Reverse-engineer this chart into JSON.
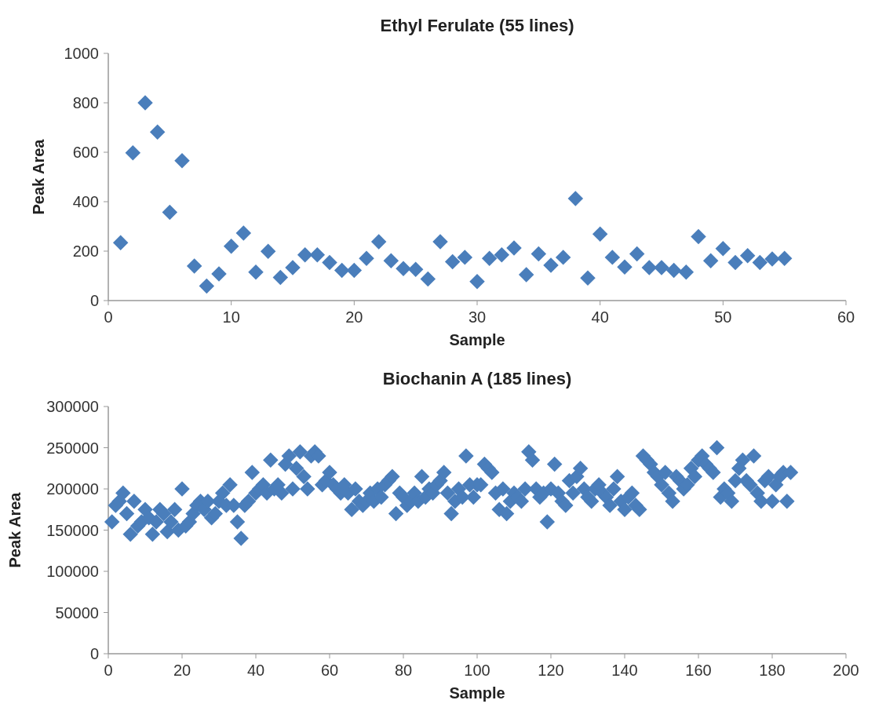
{
  "chart_data": [
    {
      "type": "scatter",
      "title": "Ethyl Ferulate (55 lines)",
      "xlabel": "Sample",
      "ylabel": "Peak Area",
      "marker": "diamond",
      "xlim": [
        0,
        60
      ],
      "xticks": [
        0,
        10,
        20,
        30,
        40,
        50,
        60
      ],
      "ylim": [
        0,
        1000
      ],
      "yticks": [
        0,
        200,
        400,
        600,
        800,
        1000
      ],
      "series": [
        {
          "color": "#4a7ebb",
          "x": [
            1,
            2,
            3,
            4,
            5,
            6,
            7,
            8,
            9,
            10,
            11,
            12,
            13,
            14,
            15,
            16,
            17,
            18,
            19,
            20,
            21,
            22,
            23,
            24,
            25,
            26,
            27,
            28,
            29,
            30,
            31,
            32,
            33,
            34,
            35,
            36,
            37,
            38,
            39,
            40,
            41,
            42,
            43,
            44,
            45,
            46,
            47,
            48,
            49,
            50,
            51,
            52,
            53,
            54,
            55
          ],
          "values": [
            234,
            598,
            800,
            682,
            357,
            566,
            140,
            59,
            108,
            220,
            273,
            115,
            199,
            94,
            133,
            185,
            185,
            154,
            122,
            122,
            171,
            238,
            161,
            129,
            126,
            87,
            238,
            157,
            175,
            77,
            171,
            185,
            213,
            105,
            189,
            143,
            175,
            413,
            91,
            269,
            175,
            136,
            189,
            133,
            133,
            122,
            115,
            259,
            161,
            210,
            154,
            182,
            154,
            168,
            171
          ]
        }
      ]
    },
    {
      "type": "scatter",
      "title": "Biochanin  A (185 lines)",
      "xlabel": "Sample",
      "ylabel": "Peak Area",
      "marker": "diamond",
      "xlim": [
        0,
        200
      ],
      "xticks": [
        0,
        20,
        40,
        60,
        80,
        100,
        120,
        140,
        160,
        180,
        200
      ],
      "ylim": [
        0,
        300000
      ],
      "yticks": [
        0,
        50000,
        100000,
        150000,
        200000,
        250000,
        300000
      ],
      "series": [
        {
          "color": "#4a7ebb",
          "x": [
            1,
            2,
            3,
            4,
            5,
            6,
            7,
            8,
            9,
            10,
            11,
            12,
            13,
            14,
            15,
            16,
            17,
            18,
            19,
            20,
            21,
            22,
            23,
            24,
            25,
            26,
            27,
            28,
            29,
            30,
            31,
            32,
            33,
            34,
            35,
            36,
            37,
            38,
            39,
            40,
            41,
            42,
            43,
            44,
            45,
            46,
            47,
            48,
            49,
            50,
            51,
            52,
            53,
            54,
            55,
            56,
            57,
            58,
            59,
            60,
            61,
            62,
            63,
            64,
            65,
            66,
            67,
            68,
            69,
            70,
            71,
            72,
            73,
            74,
            75,
            76,
            77,
            78,
            79,
            80,
            81,
            82,
            83,
            84,
            85,
            86,
            87,
            88,
            89,
            90,
            91,
            92,
            93,
            94,
            95,
            96,
            97,
            98,
            99,
            100,
            101,
            102,
            103,
            104,
            105,
            106,
            107,
            108,
            109,
            110,
            111,
            112,
            113,
            114,
            115,
            116,
            117,
            118,
            119,
            120,
            121,
            122,
            123,
            124,
            125,
            126,
            127,
            128,
            129,
            130,
            131,
            132,
            133,
            134,
            135,
            136,
            137,
            138,
            139,
            140,
            141,
            142,
            143,
            144,
            145,
            146,
            147,
            148,
            149,
            150,
            151,
            152,
            153,
            154,
            155,
            156,
            157,
            158,
            159,
            160,
            161,
            162,
            163,
            164,
            165,
            166,
            167,
            168,
            169,
            170,
            171,
            172,
            173,
            174,
            175,
            176,
            177,
            178,
            179,
            180,
            181,
            182,
            183,
            184,
            185
          ],
          "values": [
            160000,
            180000,
            185000,
            195000,
            170000,
            145000,
            185000,
            155000,
            160000,
            175000,
            165000,
            145000,
            160000,
            175000,
            170000,
            148000,
            160000,
            175000,
            150000,
            200000,
            155000,
            160000,
            170000,
            180000,
            185000,
            175000,
            185000,
            165000,
            170000,
            185000,
            195000,
            180000,
            205000,
            180000,
            160000,
            140000,
            180000,
            185000,
            220000,
            195000,
            200000,
            205000,
            195000,
            235000,
            200000,
            205000,
            195000,
            230000,
            240000,
            200000,
            225000,
            245000,
            215000,
            200000,
            240000,
            245000,
            240000,
            205000,
            210000,
            220000,
            205000,
            200000,
            195000,
            205000,
            195000,
            175000,
            200000,
            185000,
            180000,
            185000,
            195000,
            185000,
            200000,
            190000,
            205000,
            210000,
            215000,
            170000,
            195000,
            190000,
            180000,
            185000,
            195000,
            185000,
            215000,
            190000,
            200000,
            195000,
            205000,
            210000,
            220000,
            195000,
            170000,
            185000,
            200000,
            190000,
            240000,
            205000,
            190000,
            205000,
            205000,
            230000,
            225000,
            220000,
            195000,
            175000,
            200000,
            170000,
            185000,
            195000,
            190000,
            185000,
            200000,
            245000,
            235000,
            200000,
            190000,
            195000,
            160000,
            200000,
            230000,
            195000,
            185000,
            180000,
            210000,
            195000,
            215000,
            225000,
            200000,
            190000,
            185000,
            200000,
            205000,
            195000,
            190000,
            180000,
            200000,
            215000,
            185000,
            175000,
            190000,
            195000,
            180000,
            175000,
            240000,
            235000,
            230000,
            220000,
            215000,
            205000,
            220000,
            195000,
            185000,
            215000,
            210000,
            200000,
            205000,
            225000,
            215000,
            235000,
            240000,
            230000,
            225000,
            220000,
            250000,
            190000,
            200000,
            195000,
            185000,
            210000,
            225000,
            235000,
            210000,
            205000,
            240000,
            195000,
            185000,
            210000,
            215000,
            185000,
            205000,
            215000,
            220000,
            185000,
            220000
          ]
        }
      ]
    }
  ]
}
